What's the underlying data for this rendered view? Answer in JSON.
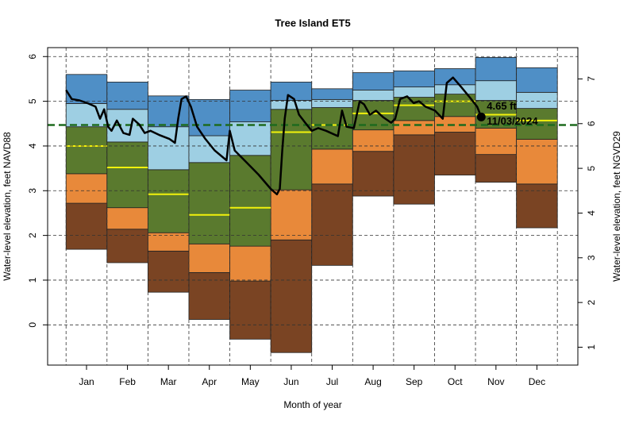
{
  "chart_data": {
    "type": "percentile-bands",
    "title": "Tree Island ET5",
    "xlabel": "Month of year",
    "ylabel": "Water-level elevation, feet NAVD88",
    "y2label": "Water-level elevation, feet NGVD29",
    "xlim": [
      -0.45,
      12.5
    ],
    "xticks": [
      {
        "value": 0.5,
        "label": "Jan"
      },
      {
        "value": 1.5,
        "label": "Feb"
      },
      {
        "value": 2.5,
        "label": "Mar"
      },
      {
        "value": 3.5,
        "label": "Apr"
      },
      {
        "value": 4.5,
        "label": "May"
      },
      {
        "value": 5.5,
        "label": "Jun"
      },
      {
        "value": 6.5,
        "label": "Jul"
      },
      {
        "value": 7.5,
        "label": "Aug"
      },
      {
        "value": 8.5,
        "label": "Sep"
      },
      {
        "value": 9.5,
        "label": "Oct"
      },
      {
        "value": 10.5,
        "label": "Nov"
      },
      {
        "value": 11.5,
        "label": "Dec"
      }
    ],
    "xgrid": [
      0,
      1,
      2,
      3,
      4,
      5,
      6,
      7,
      8,
      9,
      10,
      11,
      12
    ],
    "ylim": [
      -0.9,
      6.2
    ],
    "yticks": [
      0,
      1,
      2,
      3,
      4,
      5,
      6
    ],
    "y2lim": [
      0.6,
      7.7
    ],
    "y2ticks": [
      1,
      2,
      3,
      4,
      5,
      6,
      7
    ],
    "grid": true,
    "levels": [
      [
        1.69,
        1.39,
        0.73,
        0.12,
        -0.32,
        -0.62,
        1.33,
        2.88,
        2.7,
        3.35,
        3.19,
        2.17
      ],
      [
        2.72,
        2.14,
        1.65,
        1.17,
        0.98,
        1.9,
        3.15,
        3.88,
        4.25,
        4.31,
        3.81,
        3.15
      ],
      [
        3.38,
        2.62,
        2.06,
        1.81,
        1.76,
        3.02,
        3.93,
        4.36,
        4.57,
        4.66,
        4.4,
        4.15
      ],
      [
        4.43,
        4.09,
        3.47,
        3.63,
        3.79,
        4.82,
        4.86,
        5.02,
        5.09,
        5.16,
        5.02,
        4.84
      ],
      [
        4.95,
        4.82,
        4.43,
        4.23,
        4.54,
        5.02,
        5.04,
        5.25,
        5.32,
        5.37,
        5.46,
        5.2
      ],
      [
        5.6,
        5.43,
        5.12,
        5.04,
        5.25,
        5.43,
        5.28,
        5.64,
        5.68,
        5.73,
        5.98,
        5.75
      ]
    ],
    "band_colors": [
      "#7a4423",
      "#e8893a",
      "#5a7a2e",
      "#9ecfe3",
      "#4f8fc6"
    ],
    "median": [
      4.0,
      3.52,
      2.92,
      2.46,
      2.62,
      4.31,
      4.47,
      4.73,
      4.91,
      5.0,
      4.7,
      4.57
    ],
    "median_color": "#f2f20c",
    "reference_line": 4.47,
    "reference_color": "#1e6b1e",
    "line": {
      "color": "#000000",
      "x": [
        0,
        0.14,
        0.33,
        0.52,
        0.72,
        0.83,
        0.93,
        1.03,
        1.11,
        1.24,
        1.4,
        1.55,
        1.63,
        1.79,
        1.92,
        2.06,
        2.27,
        2.52,
        2.66,
        2.74,
        2.82,
        2.93,
        3.05,
        3.2,
        3.4,
        3.63,
        3.92,
        4.0,
        4.12,
        4.41,
        4.7,
        5.0,
        5.15,
        5.22,
        5.28,
        5.34,
        5.42,
        5.57,
        5.69,
        5.84,
        6.0,
        6.16,
        6.35,
        6.64,
        6.74,
        6.85,
        7.03,
        7.17,
        7.28,
        7.42,
        7.57,
        7.75,
        7.94,
        8.04,
        8.16,
        8.33,
        8.49,
        8.62,
        8.78,
        9.01,
        9.2,
        9.3,
        9.45,
        9.65,
        9.84,
        10.04,
        10.14
      ],
      "values": [
        5.25,
        5.05,
        5.02,
        4.96,
        4.88,
        4.61,
        4.82,
        4.43,
        4.34,
        4.57,
        4.29,
        4.25,
        4.61,
        4.48,
        4.29,
        4.34,
        4.25,
        4.16,
        4.07,
        4.61,
        5.05,
        5.11,
        4.88,
        4.43,
        4.16,
        3.9,
        3.68,
        4.34,
        3.9,
        3.63,
        3.36,
        3.04,
        2.92,
        3.04,
        3.9,
        4.61,
        5.14,
        5.05,
        4.7,
        4.52,
        4.34,
        4.4,
        4.34,
        4.22,
        4.79,
        4.43,
        4.4,
        5.0,
        4.93,
        4.7,
        4.79,
        4.64,
        4.52,
        4.61,
        5.05,
        5.11,
        4.96,
        5.0,
        4.88,
        4.79,
        4.61,
        5.41,
        5.53,
        5.32,
        5.11,
        4.88,
        4.65
      ]
    },
    "annotation": {
      "x": 10.14,
      "y": 4.65,
      "label": "4.65 ft",
      "date": "11/03/2024"
    }
  }
}
